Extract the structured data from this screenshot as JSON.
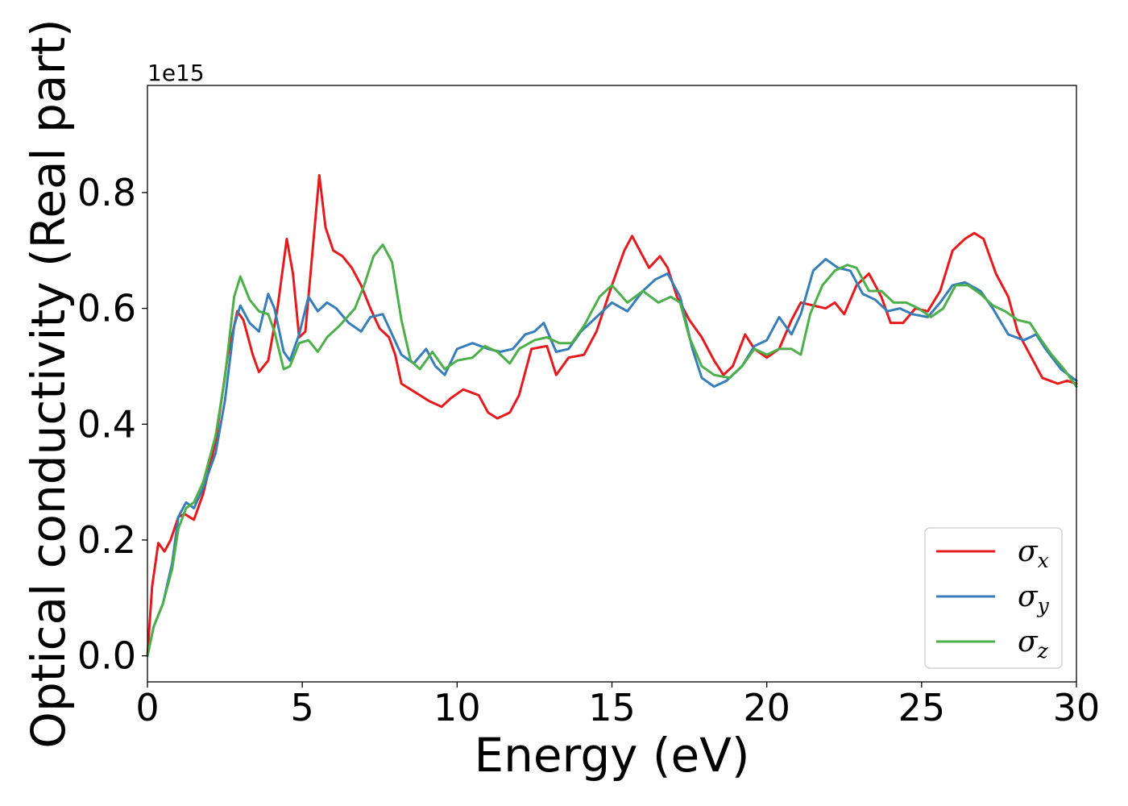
{
  "chart_data": {
    "type": "line",
    "title": "",
    "xlabel": "Energy (eV)",
    "ylabel": "Optical conductivity (Real part)",
    "y_offset_text": "1e15",
    "xlim": [
      0,
      30
    ],
    "ylim": [
      -0.045,
      0.985
    ],
    "xticks": [
      0,
      5,
      10,
      15,
      20,
      25,
      30
    ],
    "xtick_labels": [
      "0",
      "5",
      "10",
      "15",
      "20",
      "25",
      "30"
    ],
    "yticks": [
      0.0,
      0.2,
      0.4,
      0.6,
      0.8
    ],
    "ytick_labels": [
      "0.0",
      "0.2",
      "0.4",
      "0.6",
      "0.8"
    ],
    "grid": false,
    "legend_position": "lower-right",
    "series": [
      {
        "name": "σx",
        "symbol": "σ",
        "subscript": "x",
        "color": "#e41a1c",
        "points": [
          [
            0,
            0
          ],
          [
            0.15,
            0.12
          ],
          [
            0.35,
            0.195
          ],
          [
            0.55,
            0.18
          ],
          [
            0.75,
            0.2
          ],
          [
            1.0,
            0.24
          ],
          [
            1.2,
            0.245
          ],
          [
            1.5,
            0.235
          ],
          [
            1.8,
            0.28
          ],
          [
            2.2,
            0.37
          ],
          [
            2.6,
            0.52
          ],
          [
            2.9,
            0.595
          ],
          [
            3.1,
            0.58
          ],
          [
            3.4,
            0.52
          ],
          [
            3.6,
            0.49
          ],
          [
            3.9,
            0.51
          ],
          [
            4.2,
            0.6
          ],
          [
            4.5,
            0.72
          ],
          [
            4.7,
            0.66
          ],
          [
            4.9,
            0.55
          ],
          [
            5.1,
            0.56
          ],
          [
            5.3,
            0.68
          ],
          [
            5.55,
            0.83
          ],
          [
            5.75,
            0.74
          ],
          [
            6.0,
            0.7
          ],
          [
            6.3,
            0.69
          ],
          [
            6.6,
            0.67
          ],
          [
            6.9,
            0.64
          ],
          [
            7.2,
            0.6
          ],
          [
            7.5,
            0.565
          ],
          [
            7.8,
            0.55
          ],
          [
            8.0,
            0.52
          ],
          [
            8.2,
            0.47
          ],
          [
            8.5,
            0.46
          ],
          [
            8.8,
            0.45
          ],
          [
            9.1,
            0.44
          ],
          [
            9.5,
            0.43
          ],
          [
            9.8,
            0.445
          ],
          [
            10.2,
            0.46
          ],
          [
            10.7,
            0.45
          ],
          [
            11.0,
            0.42
          ],
          [
            11.3,
            0.41
          ],
          [
            11.7,
            0.42
          ],
          [
            12.0,
            0.45
          ],
          [
            12.4,
            0.53
          ],
          [
            12.9,
            0.535
          ],
          [
            13.2,
            0.485
          ],
          [
            13.6,
            0.515
          ],
          [
            14.1,
            0.52
          ],
          [
            14.5,
            0.56
          ],
          [
            15.0,
            0.64
          ],
          [
            15.4,
            0.7
          ],
          [
            15.65,
            0.725
          ],
          [
            15.9,
            0.7
          ],
          [
            16.2,
            0.67
          ],
          [
            16.55,
            0.69
          ],
          [
            16.8,
            0.67
          ],
          [
            17.1,
            0.62
          ],
          [
            17.5,
            0.58
          ],
          [
            17.9,
            0.55
          ],
          [
            18.3,
            0.51
          ],
          [
            18.6,
            0.485
          ],
          [
            18.9,
            0.5
          ],
          [
            19.3,
            0.555
          ],
          [
            19.6,
            0.53
          ],
          [
            20.0,
            0.515
          ],
          [
            20.4,
            0.53
          ],
          [
            20.8,
            0.58
          ],
          [
            21.1,
            0.61
          ],
          [
            21.5,
            0.605
          ],
          [
            21.9,
            0.6
          ],
          [
            22.2,
            0.61
          ],
          [
            22.5,
            0.59
          ],
          [
            22.9,
            0.64
          ],
          [
            23.3,
            0.66
          ],
          [
            23.7,
            0.62
          ],
          [
            24.0,
            0.575
          ],
          [
            24.4,
            0.575
          ],
          [
            24.8,
            0.6
          ],
          [
            25.2,
            0.595
          ],
          [
            25.6,
            0.63
          ],
          [
            26.0,
            0.7
          ],
          [
            26.4,
            0.72
          ],
          [
            26.7,
            0.73
          ],
          [
            27.0,
            0.72
          ],
          [
            27.4,
            0.66
          ],
          [
            27.8,
            0.62
          ],
          [
            28.1,
            0.56
          ],
          [
            28.5,
            0.52
          ],
          [
            28.9,
            0.48
          ],
          [
            29.4,
            0.47
          ],
          [
            29.7,
            0.475
          ],
          [
            30,
            0.47
          ]
        ]
      },
      {
        "name": "σy",
        "symbol": "σ",
        "subscript": "y",
        "color": "#377eb8",
        "points": [
          [
            0,
            0
          ],
          [
            0.2,
            0.05
          ],
          [
            0.5,
            0.09
          ],
          [
            0.8,
            0.16
          ],
          [
            1.0,
            0.24
          ],
          [
            1.25,
            0.265
          ],
          [
            1.5,
            0.255
          ],
          [
            1.8,
            0.29
          ],
          [
            2.2,
            0.35
          ],
          [
            2.5,
            0.44
          ],
          [
            2.8,
            0.57
          ],
          [
            3.0,
            0.605
          ],
          [
            3.3,
            0.575
          ],
          [
            3.6,
            0.56
          ],
          [
            3.9,
            0.625
          ],
          [
            4.1,
            0.6
          ],
          [
            4.4,
            0.525
          ],
          [
            4.6,
            0.51
          ],
          [
            4.9,
            0.555
          ],
          [
            5.2,
            0.62
          ],
          [
            5.5,
            0.595
          ],
          [
            5.8,
            0.61
          ],
          [
            6.1,
            0.6
          ],
          [
            6.5,
            0.575
          ],
          [
            6.9,
            0.56
          ],
          [
            7.2,
            0.585
          ],
          [
            7.6,
            0.59
          ],
          [
            7.9,
            0.555
          ],
          [
            8.2,
            0.52
          ],
          [
            8.6,
            0.505
          ],
          [
            9.0,
            0.53
          ],
          [
            9.3,
            0.5
          ],
          [
            9.6,
            0.485
          ],
          [
            10.0,
            0.53
          ],
          [
            10.5,
            0.54
          ],
          [
            11.0,
            0.53
          ],
          [
            11.4,
            0.525
          ],
          [
            11.8,
            0.53
          ],
          [
            12.2,
            0.555
          ],
          [
            12.5,
            0.56
          ],
          [
            12.8,
            0.575
          ],
          [
            13.2,
            0.525
          ],
          [
            13.6,
            0.53
          ],
          [
            14.0,
            0.56
          ],
          [
            14.5,
            0.585
          ],
          [
            15.0,
            0.61
          ],
          [
            15.5,
            0.595
          ],
          [
            16.0,
            0.63
          ],
          [
            16.4,
            0.65
          ],
          [
            16.8,
            0.66
          ],
          [
            17.2,
            0.62
          ],
          [
            17.6,
            0.53
          ],
          [
            17.9,
            0.48
          ],
          [
            18.3,
            0.465
          ],
          [
            18.7,
            0.475
          ],
          [
            19.2,
            0.5
          ],
          [
            19.6,
            0.535
          ],
          [
            20.0,
            0.545
          ],
          [
            20.4,
            0.585
          ],
          [
            20.8,
            0.555
          ],
          [
            21.1,
            0.59
          ],
          [
            21.5,
            0.665
          ],
          [
            21.9,
            0.685
          ],
          [
            22.3,
            0.67
          ],
          [
            22.7,
            0.665
          ],
          [
            23.1,
            0.625
          ],
          [
            23.5,
            0.615
          ],
          [
            23.9,
            0.595
          ],
          [
            24.3,
            0.6
          ],
          [
            24.7,
            0.59
          ],
          [
            25.2,
            0.585
          ],
          [
            25.6,
            0.61
          ],
          [
            26.0,
            0.64
          ],
          [
            26.4,
            0.645
          ],
          [
            26.9,
            0.63
          ],
          [
            27.3,
            0.6
          ],
          [
            27.8,
            0.555
          ],
          [
            28.3,
            0.545
          ],
          [
            28.7,
            0.555
          ],
          [
            29.0,
            0.53
          ],
          [
            29.5,
            0.495
          ],
          [
            30,
            0.475
          ]
        ]
      },
      {
        "name": "σz",
        "symbol": "σ",
        "subscript": "z",
        "color": "#4daf4a",
        "points": [
          [
            0,
            0
          ],
          [
            0.2,
            0.05
          ],
          [
            0.5,
            0.09
          ],
          [
            0.8,
            0.15
          ],
          [
            1.0,
            0.22
          ],
          [
            1.25,
            0.255
          ],
          [
            1.5,
            0.265
          ],
          [
            1.8,
            0.3
          ],
          [
            2.2,
            0.38
          ],
          [
            2.5,
            0.48
          ],
          [
            2.8,
            0.62
          ],
          [
            3.0,
            0.655
          ],
          [
            3.3,
            0.615
          ],
          [
            3.6,
            0.595
          ],
          [
            3.9,
            0.59
          ],
          [
            4.1,
            0.56
          ],
          [
            4.4,
            0.495
          ],
          [
            4.6,
            0.5
          ],
          [
            4.9,
            0.54
          ],
          [
            5.2,
            0.545
          ],
          [
            5.5,
            0.525
          ],
          [
            5.8,
            0.55
          ],
          [
            6.2,
            0.57
          ],
          [
            6.7,
            0.6
          ],
          [
            7.0,
            0.64
          ],
          [
            7.3,
            0.69
          ],
          [
            7.6,
            0.71
          ],
          [
            7.9,
            0.68
          ],
          [
            8.2,
            0.58
          ],
          [
            8.5,
            0.51
          ],
          [
            8.8,
            0.495
          ],
          [
            9.2,
            0.525
          ],
          [
            9.6,
            0.495
          ],
          [
            10.0,
            0.51
          ],
          [
            10.5,
            0.515
          ],
          [
            10.9,
            0.535
          ],
          [
            11.3,
            0.525
          ],
          [
            11.7,
            0.505
          ],
          [
            12.0,
            0.53
          ],
          [
            12.5,
            0.545
          ],
          [
            12.9,
            0.55
          ],
          [
            13.3,
            0.54
          ],
          [
            13.7,
            0.54
          ],
          [
            14.1,
            0.57
          ],
          [
            14.6,
            0.62
          ],
          [
            15.0,
            0.64
          ],
          [
            15.5,
            0.61
          ],
          [
            16.0,
            0.63
          ],
          [
            16.5,
            0.61
          ],
          [
            16.9,
            0.62
          ],
          [
            17.2,
            0.61
          ],
          [
            17.5,
            0.55
          ],
          [
            17.9,
            0.5
          ],
          [
            18.3,
            0.485
          ],
          [
            18.8,
            0.48
          ],
          [
            19.2,
            0.5
          ],
          [
            19.6,
            0.53
          ],
          [
            20.0,
            0.52
          ],
          [
            20.4,
            0.53
          ],
          [
            20.8,
            0.53
          ],
          [
            21.1,
            0.52
          ],
          [
            21.4,
            0.59
          ],
          [
            21.8,
            0.64
          ],
          [
            22.2,
            0.665
          ],
          [
            22.6,
            0.675
          ],
          [
            22.9,
            0.67
          ],
          [
            23.3,
            0.63
          ],
          [
            23.7,
            0.63
          ],
          [
            24.1,
            0.61
          ],
          [
            24.5,
            0.61
          ],
          [
            24.9,
            0.6
          ],
          [
            25.3,
            0.585
          ],
          [
            25.7,
            0.6
          ],
          [
            26.1,
            0.64
          ],
          [
            26.5,
            0.64
          ],
          [
            26.9,
            0.625
          ],
          [
            27.3,
            0.605
          ],
          [
            27.7,
            0.595
          ],
          [
            28.1,
            0.58
          ],
          [
            28.5,
            0.575
          ],
          [
            28.8,
            0.55
          ],
          [
            29.2,
            0.52
          ],
          [
            29.6,
            0.495
          ],
          [
            30,
            0.465
          ]
        ]
      }
    ]
  }
}
